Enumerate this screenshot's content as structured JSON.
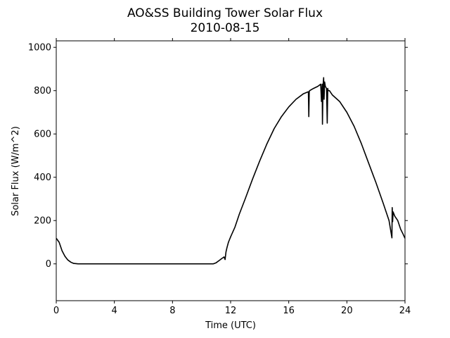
{
  "chart_data": {
    "type": "line",
    "title": "AO&SS Building Tower Solar Flux",
    "subtitle": "2010-08-15",
    "xlabel": "Time (UTC)",
    "ylabel": "Solar Flux (W/m^2)",
    "xlim": [
      0,
      24
    ],
    "ylim": [
      -170,
      1030
    ],
    "x_ticks": [
      0,
      4,
      8,
      12,
      16,
      20,
      24
    ],
    "x_tick_labels": [
      "0",
      "4",
      "8",
      "12",
      "16",
      "20",
      "24"
    ],
    "y_ticks": [
      0,
      200,
      400,
      600,
      800,
      1000
    ],
    "y_tick_labels": [
      "0",
      "200",
      "400",
      "600",
      "800",
      "1000"
    ],
    "grid": false,
    "legend": "none",
    "line_color": "#000000",
    "series": [
      {
        "x": [
          0.0,
          0.2,
          0.4,
          0.6,
          0.8,
          1.0,
          1.2,
          1.5,
          2.0,
          4.0,
          8.0,
          10.0,
          10.8,
          11.0,
          11.2,
          11.4,
          11.55,
          11.62,
          11.68,
          11.75,
          11.85,
          12.0,
          12.3,
          12.6,
          13.0,
          13.5,
          14.0,
          14.5,
          15.0,
          15.5,
          16.0,
          16.5,
          17.0,
          17.35,
          17.38,
          17.41,
          17.44,
          17.7,
          18.0,
          18.2,
          18.25,
          18.3,
          18.32,
          18.36,
          18.4,
          18.43,
          18.47,
          18.52,
          18.6,
          18.65,
          18.68,
          18.71,
          18.8,
          19.0,
          19.5,
          20.0,
          20.5,
          21.0,
          21.5,
          22.0,
          22.5,
          22.9,
          23.1,
          23.12,
          23.15,
          23.18,
          23.3,
          23.5,
          23.7,
          23.85,
          24.0
        ],
        "y": [
          118,
          100,
          60,
          35,
          18,
          8,
          2,
          0,
          0,
          0,
          0,
          0,
          0,
          5,
          15,
          25,
          32,
          20,
          55,
          75,
          100,
          125,
          170,
          230,
          300,
          390,
          475,
          555,
          625,
          680,
          725,
          760,
          785,
          795,
          680,
          795,
          800,
          810,
          820,
          830,
          750,
          830,
          645,
          820,
          860,
          760,
          840,
          820,
          810,
          650,
          810,
          800,
          800,
          780,
          750,
          700,
          635,
          555,
          465,
          375,
          280,
          200,
          120,
          260,
          195,
          240,
          220,
          200,
          160,
          140,
          118
        ]
      }
    ]
  }
}
